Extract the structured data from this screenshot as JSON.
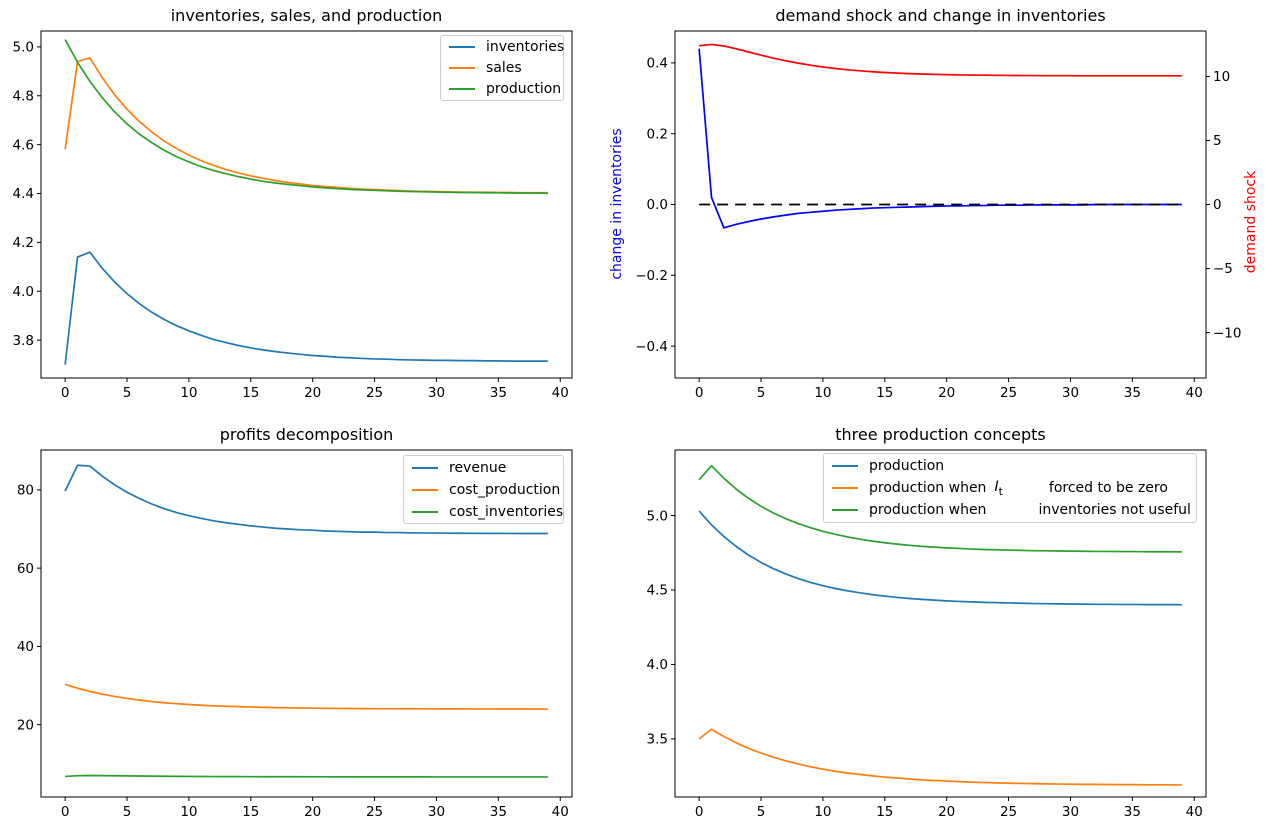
{
  "figure": {
    "background": "#ffffff"
  },
  "x_values": [
    0,
    1,
    2,
    3,
    4,
    5,
    6,
    7,
    8,
    9,
    10,
    11,
    12,
    13,
    14,
    15,
    16,
    17,
    18,
    19,
    20,
    21,
    22,
    23,
    24,
    25,
    26,
    27,
    28,
    29,
    30,
    31,
    32,
    33,
    34,
    35,
    36,
    37,
    38,
    39
  ],
  "chart_data": [
    {
      "type": "line",
      "title": "inventories, sales, and production",
      "xlabel": "",
      "ylabel": "",
      "xlim": [
        -1.95,
        40.95
      ],
      "ylim": [
        3.645,
        5.065
      ],
      "grid": false,
      "legend_position": "upper right",
      "xticks": [
        0,
        5,
        10,
        15,
        20,
        25,
        30,
        35,
        40
      ],
      "xtick_labels": [
        "0",
        "5",
        "10",
        "15",
        "20",
        "25",
        "30",
        "35",
        "40"
      ],
      "yticks": [
        3.8,
        4.0,
        4.2,
        4.4,
        4.6,
        4.8,
        5.0
      ],
      "ytick_labels": [
        "3.8",
        "4.0",
        "4.2",
        "4.4",
        "4.6",
        "4.8",
        "5.0"
      ],
      "series": [
        {
          "name": "inventories",
          "color": "#1f77b4",
          "values": [
            3.7,
            4.14,
            4.16,
            4.094,
            4.038,
            3.99,
            3.949,
            3.914,
            3.885,
            3.859,
            3.838,
            3.819,
            3.803,
            3.79,
            3.778,
            3.768,
            3.76,
            3.753,
            3.747,
            3.742,
            3.737,
            3.734,
            3.73,
            3.728,
            3.725,
            3.723,
            3.722,
            3.72,
            3.719,
            3.718,
            3.717,
            3.717,
            3.716,
            3.716,
            3.715,
            3.715,
            3.714,
            3.714,
            3.714,
            3.714
          ]
        },
        {
          "name": "sales",
          "color": "#ff7f0e",
          "values": [
            4.58,
            4.94,
            4.955,
            4.874,
            4.804,
            4.745,
            4.695,
            4.652,
            4.615,
            4.584,
            4.557,
            4.534,
            4.515,
            4.498,
            4.484,
            4.472,
            4.462,
            4.453,
            4.445,
            4.439,
            4.433,
            4.429,
            4.425,
            4.421,
            4.418,
            4.416,
            4.414,
            4.412,
            4.41,
            4.409,
            4.408,
            4.407,
            4.406,
            4.405,
            4.405,
            4.404,
            4.404,
            4.403,
            4.403,
            4.403
          ]
        },
        {
          "name": "production",
          "color": "#2ca02c",
          "values": [
            5.03,
            4.937,
            4.859,
            4.792,
            4.734,
            4.685,
            4.643,
            4.608,
            4.577,
            4.551,
            4.529,
            4.51,
            4.494,
            4.481,
            4.469,
            4.459,
            4.45,
            4.443,
            4.437,
            4.432,
            4.427,
            4.423,
            4.42,
            4.417,
            4.415,
            4.413,
            4.411,
            4.409,
            4.408,
            4.407,
            4.406,
            4.405,
            4.404,
            4.404,
            4.403,
            4.403,
            4.402,
            4.402,
            4.402,
            4.401
          ]
        }
      ]
    },
    {
      "type": "line",
      "title": "demand shock and change in inventories",
      "ylabel_left": "change in inventories",
      "ylabel_left_color": "#0000ff",
      "ylabel_right": "demand shock",
      "ylabel_right_color": "#ff0000",
      "xlim": [
        -1.95,
        40.95
      ],
      "ylim": [
        -0.49,
        0.49
      ],
      "ylim_right": [
        -13.55,
        13.55
      ],
      "grid": false,
      "legend_position": "none",
      "xticks": [
        0,
        5,
        10,
        15,
        20,
        25,
        30,
        35,
        40
      ],
      "xtick_labels": [
        "0",
        "5",
        "10",
        "15",
        "20",
        "25",
        "30",
        "35",
        "40"
      ],
      "yticks": [
        -0.4,
        -0.2,
        0.0,
        0.2,
        0.4
      ],
      "ytick_labels": [
        "−0.4",
        "−0.2",
        "0.0",
        "0.2",
        "0.4"
      ],
      "yticks_right": [
        -10,
        -5,
        0,
        5,
        10
      ],
      "ytick_labels_right": [
        "−10",
        "−5",
        "0",
        "5",
        "10"
      ],
      "series": [
        {
          "name": "change in inventories",
          "color": "#0000ff",
          "values": [
            0.44,
            0.02,
            -0.066,
            -0.056,
            -0.048,
            -0.041,
            -0.035,
            -0.03,
            -0.025,
            -0.022,
            -0.019,
            -0.016,
            -0.014,
            -0.012,
            -0.01,
            -0.009,
            -0.008,
            -0.007,
            -0.006,
            -0.005,
            -0.004,
            -0.004,
            -0.003,
            -0.003,
            -0.002,
            -0.002,
            -0.002,
            -0.001,
            -0.001,
            -0.001,
            -0.001,
            -0.001,
            0,
            0,
            0,
            0,
            0,
            0,
            0,
            0
          ]
        },
        {
          "name": "zero line",
          "color": "#000000",
          "dash": true,
          "x": [
            0,
            39
          ],
          "values": [
            0,
            0
          ]
        },
        {
          "name": "demand shock",
          "color": "#ff0000",
          "axis": "right",
          "values": [
            12.4,
            12.5,
            12.38,
            12.16,
            11.91,
            11.66,
            11.43,
            11.22,
            11.04,
            10.88,
            10.74,
            10.62,
            10.52,
            10.44,
            10.37,
            10.31,
            10.26,
            10.22,
            10.19,
            10.16,
            10.14,
            10.12,
            10.11,
            10.1,
            10.09,
            10.08,
            10.07,
            10.07,
            10.06,
            10.06,
            10.06,
            10.05,
            10.05,
            10.05,
            10.05,
            10.05,
            10.05,
            10.05,
            10.05,
            10.05
          ]
        }
      ]
    },
    {
      "type": "line",
      "title": "profits decomposition",
      "xlim": [
        -1.95,
        40.95
      ],
      "ylim": [
        1.5,
        90.2
      ],
      "grid": false,
      "legend_position": "upper right",
      "xticks": [
        0,
        5,
        10,
        15,
        20,
        25,
        30,
        35,
        40
      ],
      "xtick_labels": [
        "0",
        "5",
        "10",
        "15",
        "20",
        "25",
        "30",
        "35",
        "40"
      ],
      "yticks": [
        20,
        40,
        60,
        80
      ],
      "ytick_labels": [
        "20",
        "40",
        "60",
        "80"
      ],
      "series": [
        {
          "name": "revenue",
          "color": "#1f77b4",
          "values": [
            79.7,
            86.3,
            86.1,
            83.5,
            81.3,
            79.4,
            77.8,
            76.4,
            75.2,
            74.2,
            73.4,
            72.7,
            72.1,
            71.6,
            71.2,
            70.8,
            70.5,
            70.2,
            70.0,
            69.8,
            69.7,
            69.5,
            69.4,
            69.3,
            69.2,
            69.2,
            69.1,
            69.1,
            69.0,
            69.0,
            68.97,
            68.94,
            68.92,
            68.9,
            68.89,
            68.88,
            68.87,
            68.86,
            68.85,
            68.85
          ]
        },
        {
          "name": "cost_production",
          "color": "#ff7f0e",
          "values": [
            30.3,
            29.3,
            28.5,
            27.8,
            27.2,
            26.7,
            26.3,
            25.9,
            25.6,
            25.35,
            25.15,
            24.95,
            24.8,
            24.7,
            24.6,
            24.5,
            24.4,
            24.35,
            24.3,
            24.25,
            24.2,
            24.17,
            24.14,
            24.12,
            24.1,
            24.08,
            24.07,
            24.06,
            24.05,
            24.04,
            24.03,
            24.02,
            24.02,
            24.01,
            24.01,
            24.0,
            24.0,
            23.99,
            23.99,
            23.98
          ]
        },
        {
          "name": "cost_inventories",
          "color": "#2ca02c",
          "values": [
            6.75,
            6.95,
            7.0,
            6.97,
            6.93,
            6.9,
            6.86,
            6.83,
            6.8,
            6.78,
            6.76,
            6.74,
            6.73,
            6.71,
            6.7,
            6.69,
            6.68,
            6.68,
            6.67,
            6.67,
            6.66,
            6.66,
            6.65,
            6.65,
            6.65,
            6.64,
            6.64,
            6.64,
            6.64,
            6.64,
            6.63,
            6.63,
            6.63,
            6.63,
            6.63,
            6.63,
            6.63,
            6.63,
            6.63,
            6.63
          ]
        }
      ]
    },
    {
      "type": "line",
      "title": "three production concepts",
      "xlim": [
        -1.95,
        40.95
      ],
      "ylim": [
        3.11,
        5.44
      ],
      "grid": false,
      "legend_position": "upper right",
      "xticks": [
        0,
        5,
        10,
        15,
        20,
        25,
        30,
        35,
        40
      ],
      "xtick_labels": [
        "0",
        "5",
        "10",
        "15",
        "20",
        "25",
        "30",
        "35",
        "40"
      ],
      "yticks": [
        3.5,
        4.0,
        4.5,
        5.0
      ],
      "ytick_labels": [
        "3.5",
        "4.0",
        "4.5",
        "5.0"
      ],
      "legend_rows": [
        {
          "text": "production"
        },
        {
          "pre": "production when",
          "math_base": "I",
          "math_sub": "t",
          "post": "forced to be zero"
        },
        {
          "pre": "production when",
          "post": "inventories not useful"
        }
      ],
      "series": [
        {
          "name": "production",
          "color": "#1f77b4",
          "values": [
            5.03,
            4.937,
            4.859,
            4.792,
            4.734,
            4.685,
            4.643,
            4.608,
            4.577,
            4.551,
            4.529,
            4.51,
            4.494,
            4.481,
            4.469,
            4.459,
            4.45,
            4.443,
            4.437,
            4.432,
            4.427,
            4.423,
            4.42,
            4.417,
            4.415,
            4.413,
            4.411,
            4.409,
            4.408,
            4.407,
            4.406,
            4.405,
            4.404,
            4.404,
            4.403,
            4.403,
            4.402,
            4.402,
            4.402,
            4.401
          ]
        },
        {
          "name": "production when It forced to be zero",
          "color": "#ff7f0e",
          "values": [
            3.5,
            3.565,
            3.516,
            3.474,
            3.437,
            3.405,
            3.377,
            3.353,
            3.332,
            3.313,
            3.297,
            3.283,
            3.271,
            3.261,
            3.252,
            3.244,
            3.237,
            3.231,
            3.225,
            3.221,
            3.217,
            3.213,
            3.21,
            3.207,
            3.205,
            3.203,
            3.201,
            3.2,
            3.198,
            3.197,
            3.196,
            3.195,
            3.195,
            3.194,
            3.193,
            3.193,
            3.192,
            3.192,
            3.192,
            3.191
          ]
        },
        {
          "name": "production when inventories not useful",
          "color": "#2ca02c",
          "values": [
            5.24,
            5.335,
            5.25,
            5.177,
            5.115,
            5.062,
            5.017,
            4.979,
            4.946,
            4.918,
            4.894,
            4.874,
            4.856,
            4.841,
            4.828,
            4.817,
            4.808,
            4.8,
            4.793,
            4.788,
            4.783,
            4.779,
            4.775,
            4.772,
            4.77,
            4.768,
            4.766,
            4.764,
            4.763,
            4.762,
            4.761,
            4.76,
            4.759,
            4.759,
            4.758,
            4.758,
            4.757,
            4.757,
            4.757,
            4.756
          ]
        }
      ]
    }
  ]
}
